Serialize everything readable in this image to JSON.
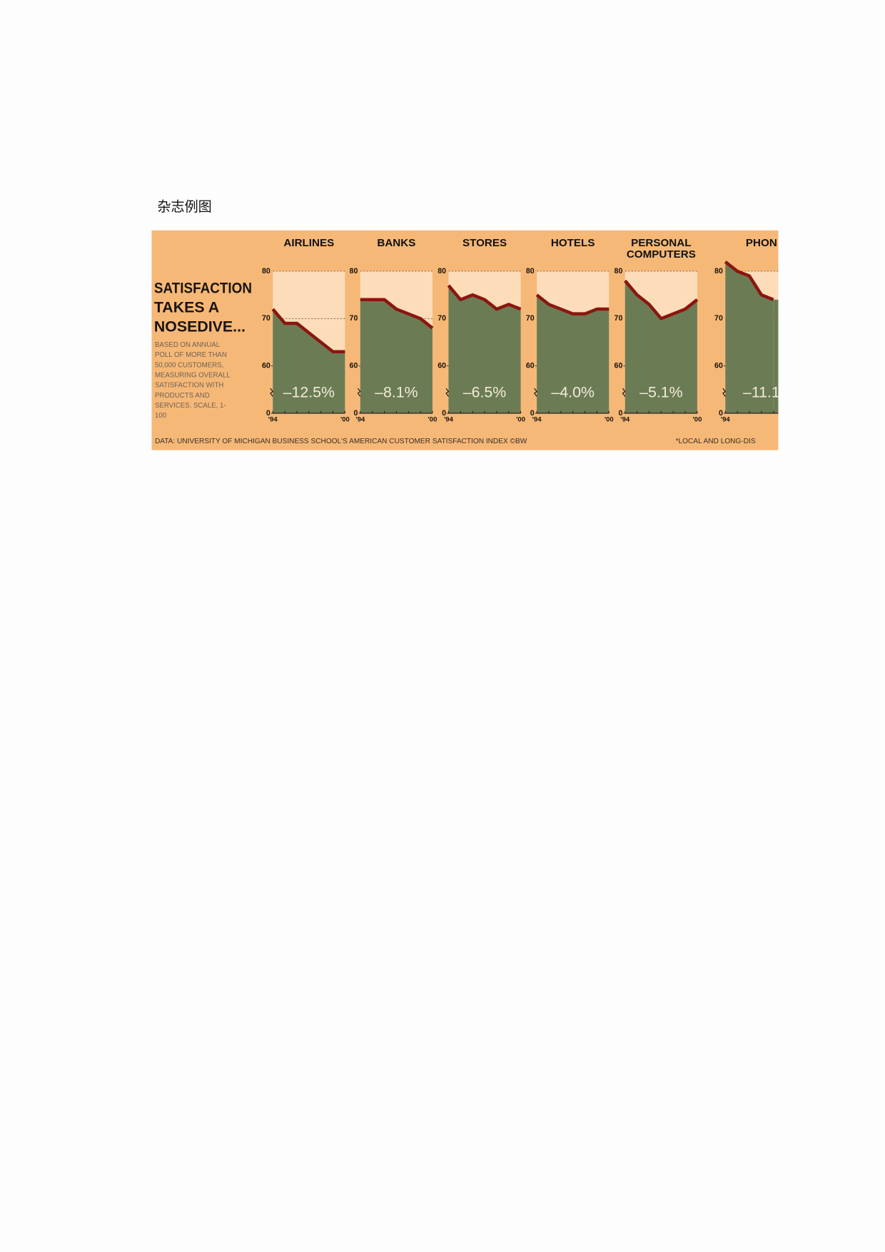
{
  "caption": "杂志例图",
  "infographic": {
    "title": [
      "SATISFACTION",
      "TAKES A",
      "NOSEDIVE..."
    ],
    "subtitle": [
      "BASED ON ANNUAL",
      "POLL OF MORE THAN",
      "50,000 CUSTOMERS,",
      "MEASURING OVERALL",
      "SATISFACTION WITH",
      "PRODUCTS AND",
      "SERVICES. SCALE, 1-",
      "100"
    ],
    "source": "DATA: UNIVERSITY OF MICHIGAN BUSINESS SCHOOL'S AMERICAN CUSTOMER SATISFACTION INDEX ©BW",
    "footnote": "*LOCAL AND LONG-DIS"
  },
  "chart_data": [
    {
      "type": "area",
      "title": "AIRLINES",
      "annotation": "–12.5%",
      "categories": [
        "'94",
        null,
        null,
        null,
        null,
        null,
        "'00"
      ],
      "values": [
        72,
        69,
        69,
        67,
        65,
        63,
        63
      ],
      "ylim": [
        0,
        80
      ],
      "yticks": [
        0,
        60,
        70,
        80
      ],
      "grid": true,
      "color": "#6b7c55",
      "line_color": "#8a1610"
    },
    {
      "type": "area",
      "title": "BANKS",
      "annotation": "–8.1%",
      "categories": [
        "'94",
        null,
        null,
        null,
        null,
        null,
        "'00"
      ],
      "values": [
        74,
        74,
        74,
        72,
        71,
        70,
        68
      ],
      "ylim": [
        0,
        80
      ],
      "yticks": [
        0,
        60,
        70,
        80
      ],
      "grid": true,
      "color": "#6b7c55",
      "line_color": "#8a1610"
    },
    {
      "type": "area",
      "title": "STORES",
      "annotation": "–6.5%",
      "categories": [
        "'94",
        null,
        null,
        null,
        null,
        null,
        "'00"
      ],
      "values": [
        77,
        74,
        75,
        74,
        72,
        73,
        72
      ],
      "ylim": [
        0,
        80
      ],
      "yticks": [
        0,
        60,
        70,
        80
      ],
      "grid": true,
      "color": "#6b7c55",
      "line_color": "#8a1610"
    },
    {
      "type": "area",
      "title": "HOTELS",
      "annotation": "–4.0%",
      "categories": [
        "'94",
        null,
        null,
        null,
        null,
        null,
        "'00"
      ],
      "values": [
        75,
        73,
        72,
        71,
        71,
        72,
        72
      ],
      "ylim": [
        0,
        80
      ],
      "yticks": [
        0,
        60,
        70,
        80
      ],
      "grid": true,
      "color": "#6b7c55",
      "line_color": "#8a1610"
    },
    {
      "type": "area",
      "title": "PERSONAL COMPUTERS",
      "annotation": "–5.1%",
      "categories": [
        "'94",
        null,
        null,
        null,
        null,
        null,
        "'00"
      ],
      "values": [
        78,
        75,
        73,
        70,
        71,
        72,
        74
      ],
      "ylim": [
        0,
        80
      ],
      "yticks": [
        0,
        60,
        70,
        80
      ],
      "grid": true,
      "color": "#6b7c55",
      "line_color": "#8a1610"
    },
    {
      "type": "area",
      "title": "PHON",
      "annotation": "–11.1",
      "categories": [
        "'94",
        null,
        null,
        null,
        null,
        null,
        null
      ],
      "values": [
        82,
        80,
        79,
        75,
        74,
        null,
        null
      ],
      "ylim": [
        0,
        80
      ],
      "yticks": [
        0,
        60,
        70,
        80
      ],
      "grid": true,
      "color": "#6b7c55",
      "line_color": "#8a1610"
    }
  ]
}
